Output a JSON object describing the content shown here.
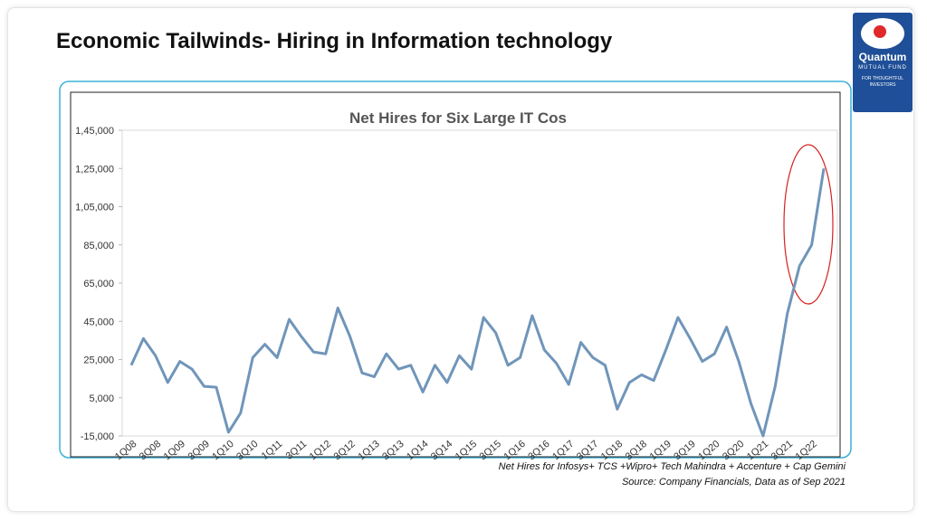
{
  "header": {
    "title": "Economic Tailwinds- Hiring in Information technology"
  },
  "logo": {
    "name": "Quantum",
    "subtitle": "MUTUAL FUND",
    "tagline": "FOR THOUGHTFUL INVESTORS"
  },
  "chart_data": {
    "type": "line",
    "title": "Net  Hires for Six Large IT Cos",
    "categories": [
      "1Q08",
      null,
      "3Q08",
      null,
      "1Q09",
      null,
      "3Q09",
      null,
      "1Q10",
      null,
      "3Q10",
      null,
      "1Q11",
      null,
      "3Q11",
      null,
      "1Q12",
      null,
      "3Q12",
      null,
      "1Q13",
      null,
      "3Q13",
      null,
      "1Q14",
      null,
      "3Q14",
      null,
      "1Q15",
      null,
      "3Q15",
      null,
      "1Q16",
      null,
      "3Q16",
      null,
      "1Q17",
      null,
      "3Q17",
      null,
      "1Q18",
      null,
      "3Q18",
      null,
      "1Q19",
      null,
      "3Q19",
      null,
      "1Q20",
      null,
      "3Q20",
      null,
      "1Q21",
      null,
      "3Q21",
      null,
      "1Q22",
      null
    ],
    "series": [
      {
        "name": "Net Hires",
        "color": "#7095ba",
        "values": [
          22000,
          36000,
          27000,
          13000,
          24000,
          20000,
          11000,
          10500,
          -13000,
          -3000,
          26000,
          33000,
          26000,
          46000,
          37000,
          29000,
          28000,
          52000,
          37000,
          18000,
          16000,
          28000,
          20000,
          22000,
          8000,
          22000,
          13000,
          27000,
          20000,
          47000,
          39000,
          22000,
          26000,
          48000,
          30000,
          23000,
          12000,
          34000,
          26000,
          22000,
          -1000,
          13000,
          17000,
          14000,
          30000,
          47000,
          36000,
          24000,
          28000,
          42000,
          24000,
          2000,
          -15000,
          11000,
          49000,
          74000,
          85000,
          125000
        ]
      }
    ],
    "ylim": [
      -15000,
      145000
    ],
    "yticks": [
      {
        "value": -15000,
        "label": "-15,000"
      },
      {
        "value": 5000,
        "label": "5,000"
      },
      {
        "value": 25000,
        "label": "25,000"
      },
      {
        "value": 45000,
        "label": "45,000"
      },
      {
        "value": 65000,
        "label": "65,000"
      },
      {
        "value": 85000,
        "label": "85,000"
      },
      {
        "value": 105000,
        "label": "1,05,000"
      },
      {
        "value": 125000,
        "label": "1,25,000"
      },
      {
        "value": 145000,
        "label": "1,45,000"
      }
    ],
    "grid": false
  },
  "footnotes": [
    "Net Hires for Infosys+ TCS +Wipro+ Tech Mahindra + Accenture + Cap Gemini",
    "Source: Company Financials, Data as of Sep 2021"
  ]
}
